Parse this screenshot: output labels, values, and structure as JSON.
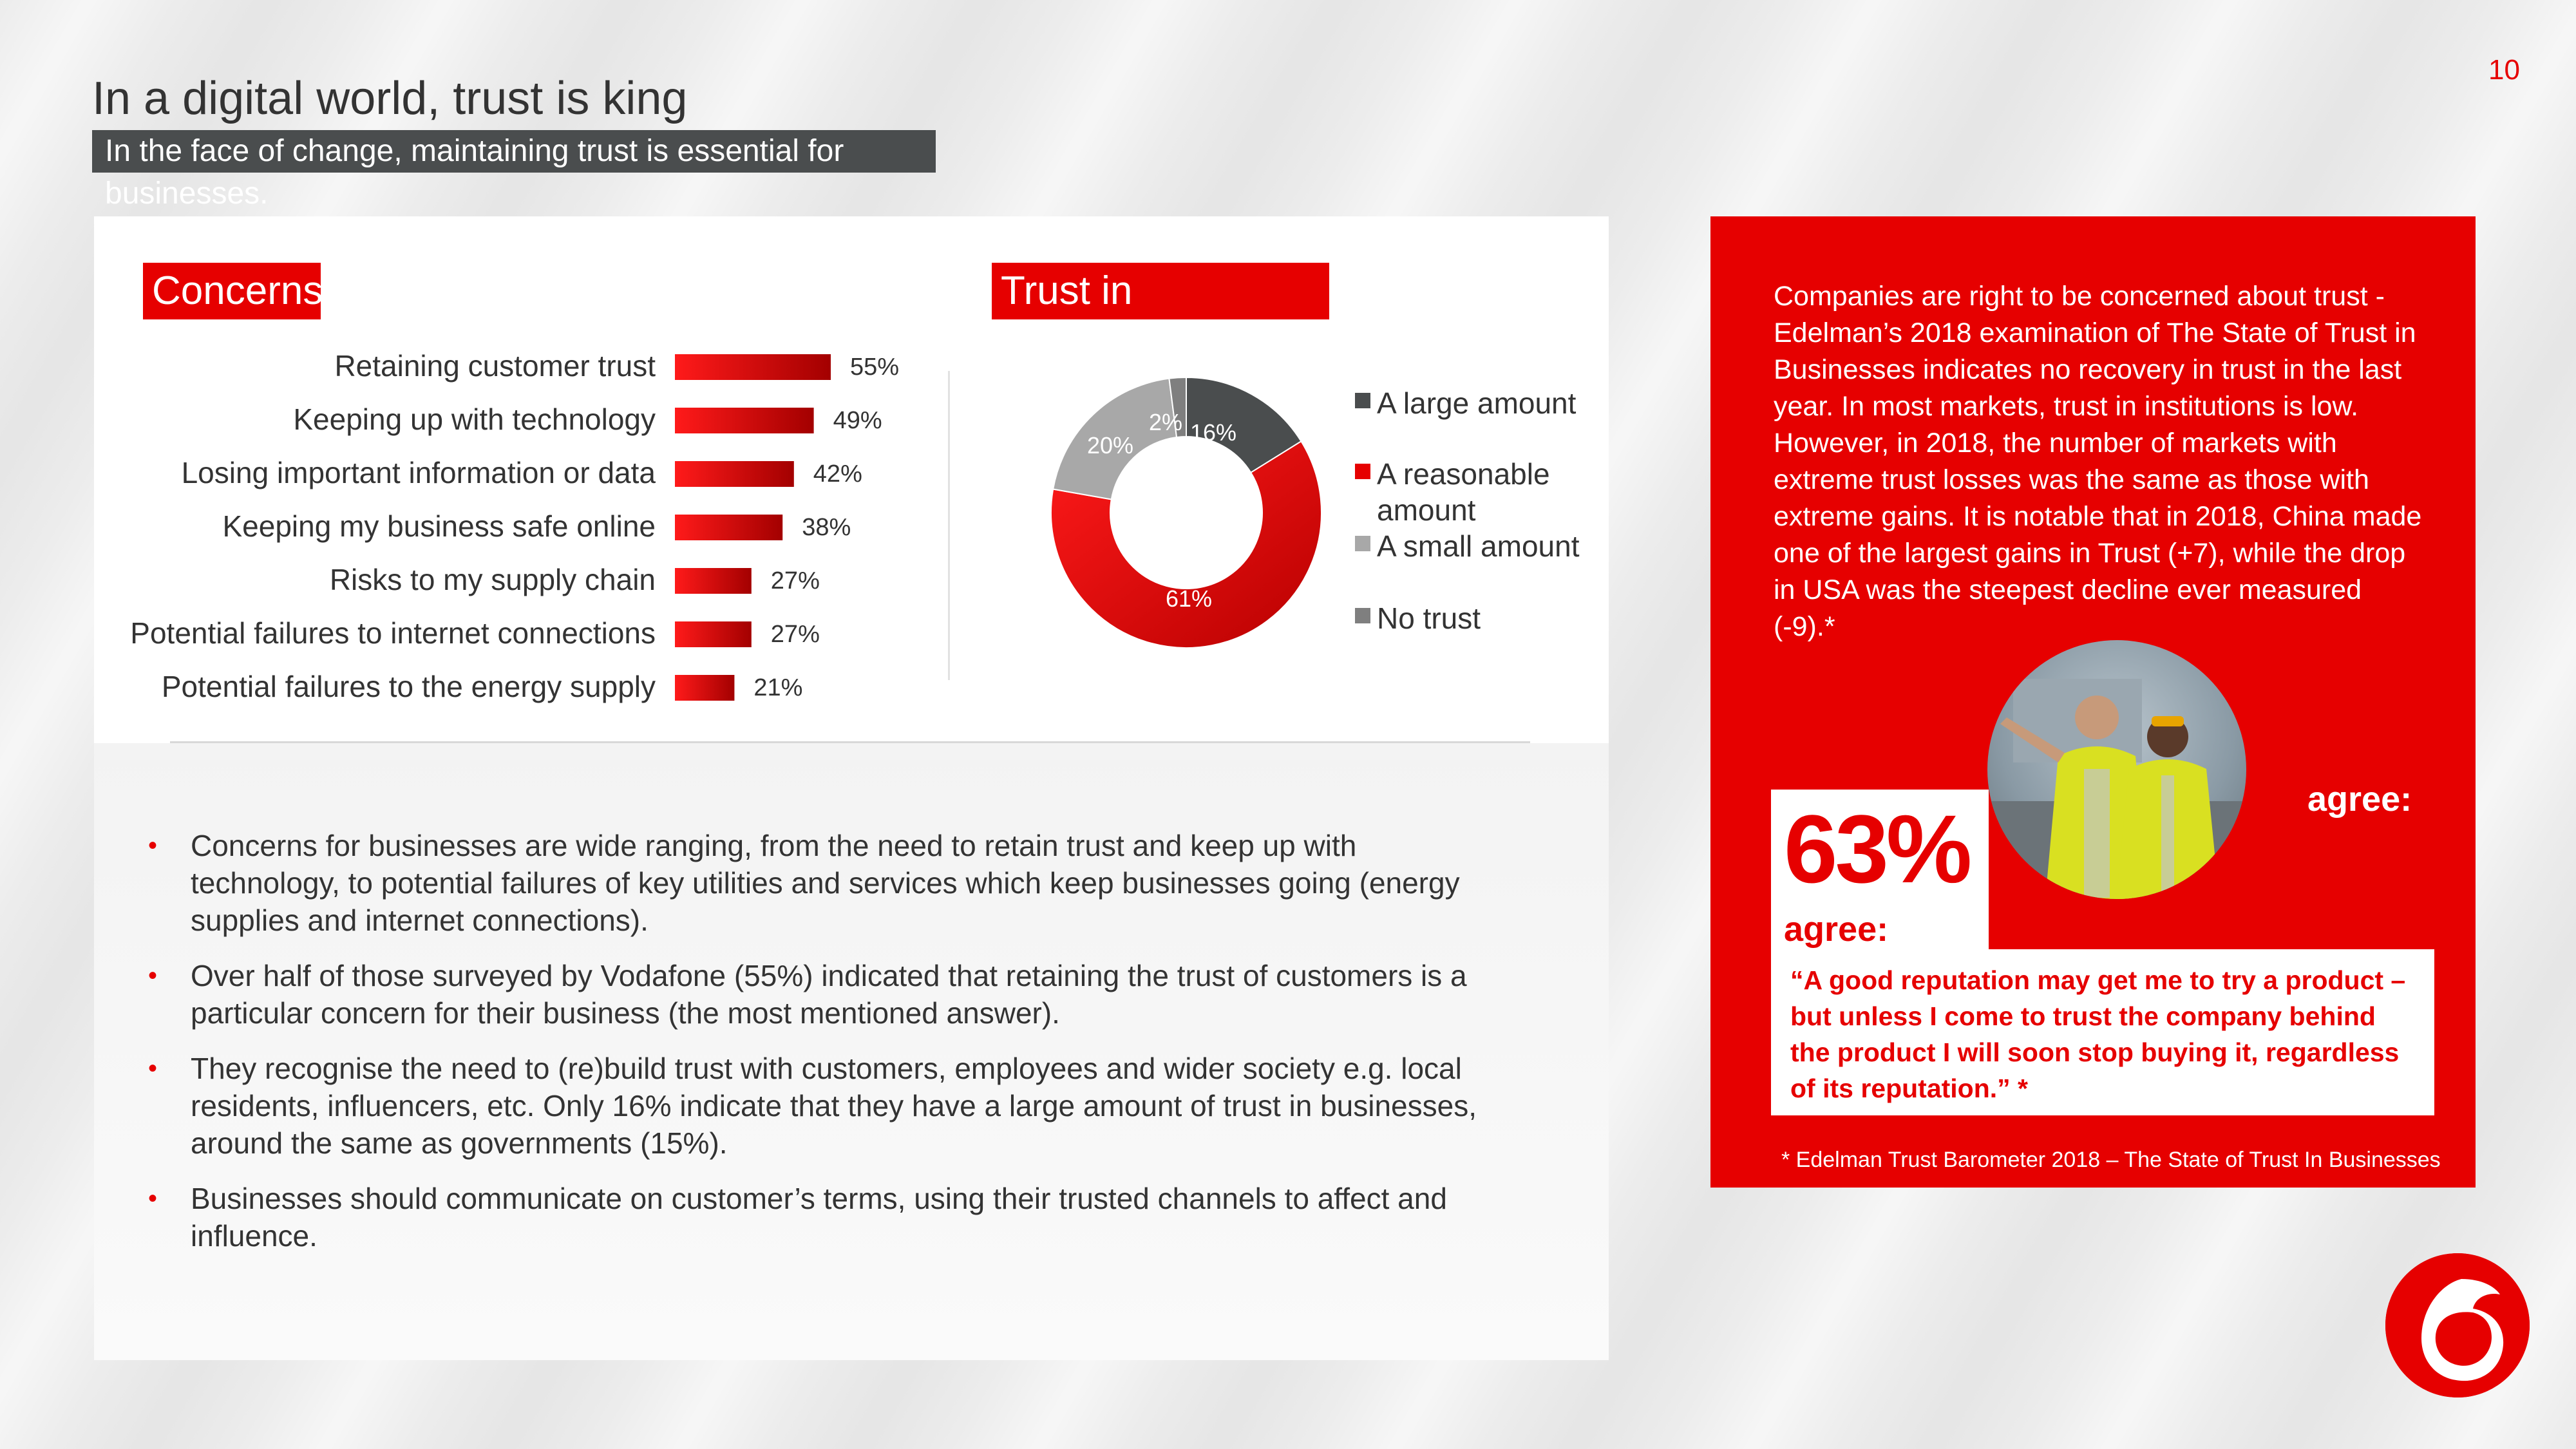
{
  "page_number": "10",
  "title": "In a digital world, trust is king",
  "subtitle": "In the face of change, maintaining trust is essential for businesses.",
  "chart_data": [
    {
      "type": "bar",
      "orientation": "horizontal",
      "title": "Concerns",
      "categories": [
        "Retaining customer trust",
        "Keeping up with technology",
        "Losing important information or data",
        "Keeping my business safe online",
        "Risks to my supply chain",
        "Potential failures to internet connections",
        "Potential failures to the energy supply"
      ],
      "values": [
        55,
        49,
        42,
        38,
        27,
        27,
        21
      ],
      "value_labels": [
        "55%",
        "49%",
        "42%",
        "38%",
        "27%",
        "27%",
        "21%"
      ],
      "bar_color": "#e60000",
      "grid": false
    },
    {
      "type": "pie",
      "style": "donut",
      "title": "Trust in businesses",
      "categories": [
        "A large amount",
        "A reasonable amount",
        "A small amount",
        "No trust"
      ],
      "values": [
        16,
        61,
        20,
        2
      ],
      "value_labels": [
        "16%",
        "61%",
        "20%",
        "2%"
      ],
      "colors": [
        "#4a4d4e",
        "#e60000",
        "#a8a8a8",
        "#7f7f7f"
      ],
      "legend_position": "right"
    }
  ],
  "bullets": [
    "Concerns for businesses are wide ranging, from the need to retain trust and keep up with technology, to potential failures of key utilities and services which keep businesses going (energy supplies and internet connections).",
    "Over half of those surveyed by Vodafone (55%) indicated that retaining the trust of customers is a particular concern for their business (the most mentioned answer).",
    "They recognise the need to (re)build trust with customers, employees and wider society e.g. local residents, influencers, etc.  Only 16% indicate that they have a large amount of trust in businesses, around the same as governments (15%).",
    "Businesses should communicate on customer’s terms, using their trusted channels to affect and influence."
  ],
  "bullet_glyph": "•",
  "sidebar": {
    "text": "Companies are right to be concerned about trust - Edelman’s 2018 examination of The State of Trust in Businesses indicates no recovery in trust in the last year.  In most markets, trust in institutions is low.  However, in 2018, the number of markets with extreme trust losses was the same as those with extreme gains.  It is notable that in 2018, China made one of the largest gains in Trust (+7), while the drop in USA was the steepest decline ever measured (-9).*",
    "stat_value": "63%",
    "stat_label": "agree:",
    "agree_right": "agree:",
    "quote": "“A good reputation may get me to try a product – but unless I come to trust the company behind the product I will soon stop buying it, regardless of its reputation.” *",
    "footnote": "* Edelman Trust Barometer 2018 – The State of Trust In Businesses",
    "photo": "two-workers-in-hi-vis-vests-photo"
  },
  "colors": {
    "accent": "#e60000",
    "dark_grey": "#4a4d4e"
  },
  "logo": "vodafone-speechmark-logo"
}
